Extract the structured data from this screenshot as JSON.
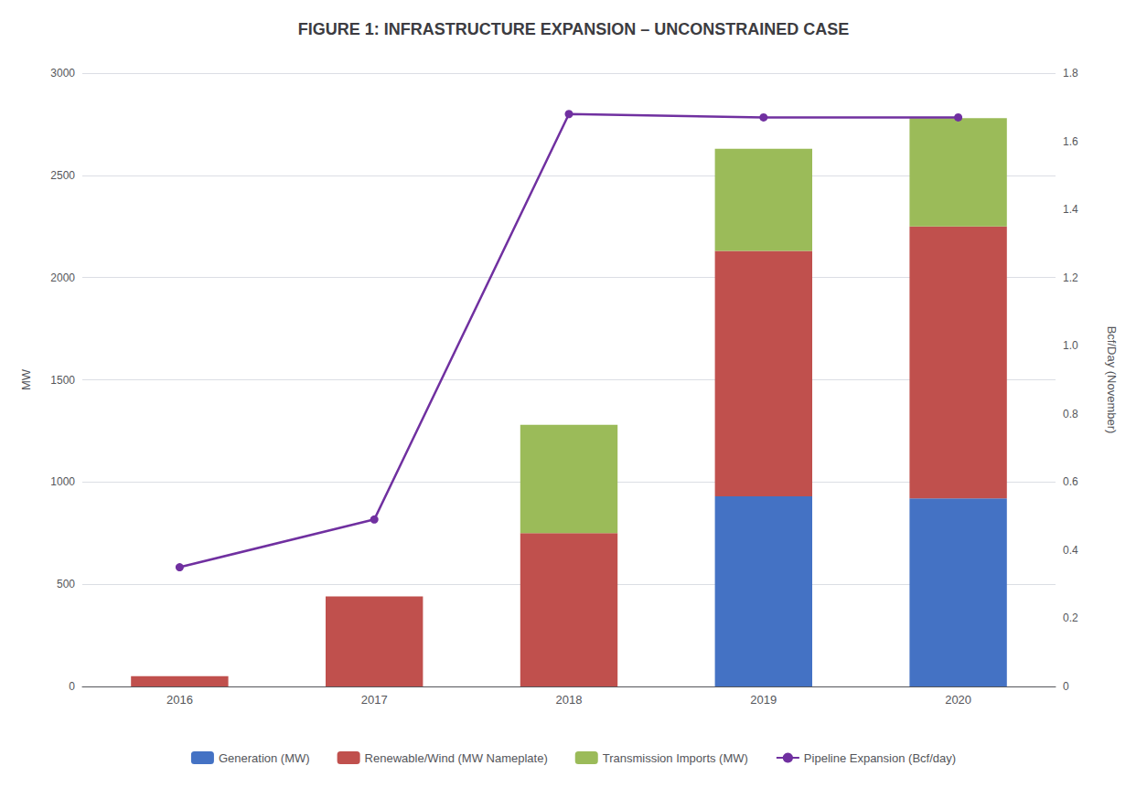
{
  "chart_data": {
    "type": "bar",
    "title": "FIGURE 1: INFRASTRUCTURE EXPANSION – UNCONSTRAINED CASE",
    "categories": [
      "2016",
      "2017",
      "2018",
      "2019",
      "2020"
    ],
    "stacked": true,
    "grid": true,
    "legend": "bottom",
    "ylabel": "MW",
    "y2label": "Bcf/Day (November)",
    "ylim": [
      0,
      3000
    ],
    "yticks": [
      0,
      500,
      1000,
      1500,
      2000,
      2500,
      3000
    ],
    "y2lim": [
      0,
      1.8
    ],
    "y2ticks": [
      0,
      0.2,
      0.4,
      0.6,
      0.8,
      {
        "value": 1.0,
        "label": "1.0"
      },
      1.2,
      1.4,
      1.6,
      1.8
    ],
    "series": [
      {
        "name": "Generation (MW)",
        "type": "bar",
        "color": "#4472C4",
        "values": [
          0,
          0,
          0,
          930,
          920
        ]
      },
      {
        "name": "Renewable/Wind (MW Nameplate)",
        "type": "bar",
        "color": "#C0504D",
        "values": [
          50,
          440,
          750,
          1200,
          1330
        ]
      },
      {
        "name": "Transmission Imports (MW)",
        "type": "bar",
        "color": "#9BBB59",
        "values": [
          0,
          0,
          530,
          500,
          530
        ]
      },
      {
        "name": "Pipeline Expansion (Bcf/day)",
        "type": "line",
        "axis": "y2",
        "color": "#7030A0",
        "marker": "circle",
        "values": [
          0.35,
          0.49,
          1.68,
          1.67,
          1.67
        ]
      }
    ]
  }
}
